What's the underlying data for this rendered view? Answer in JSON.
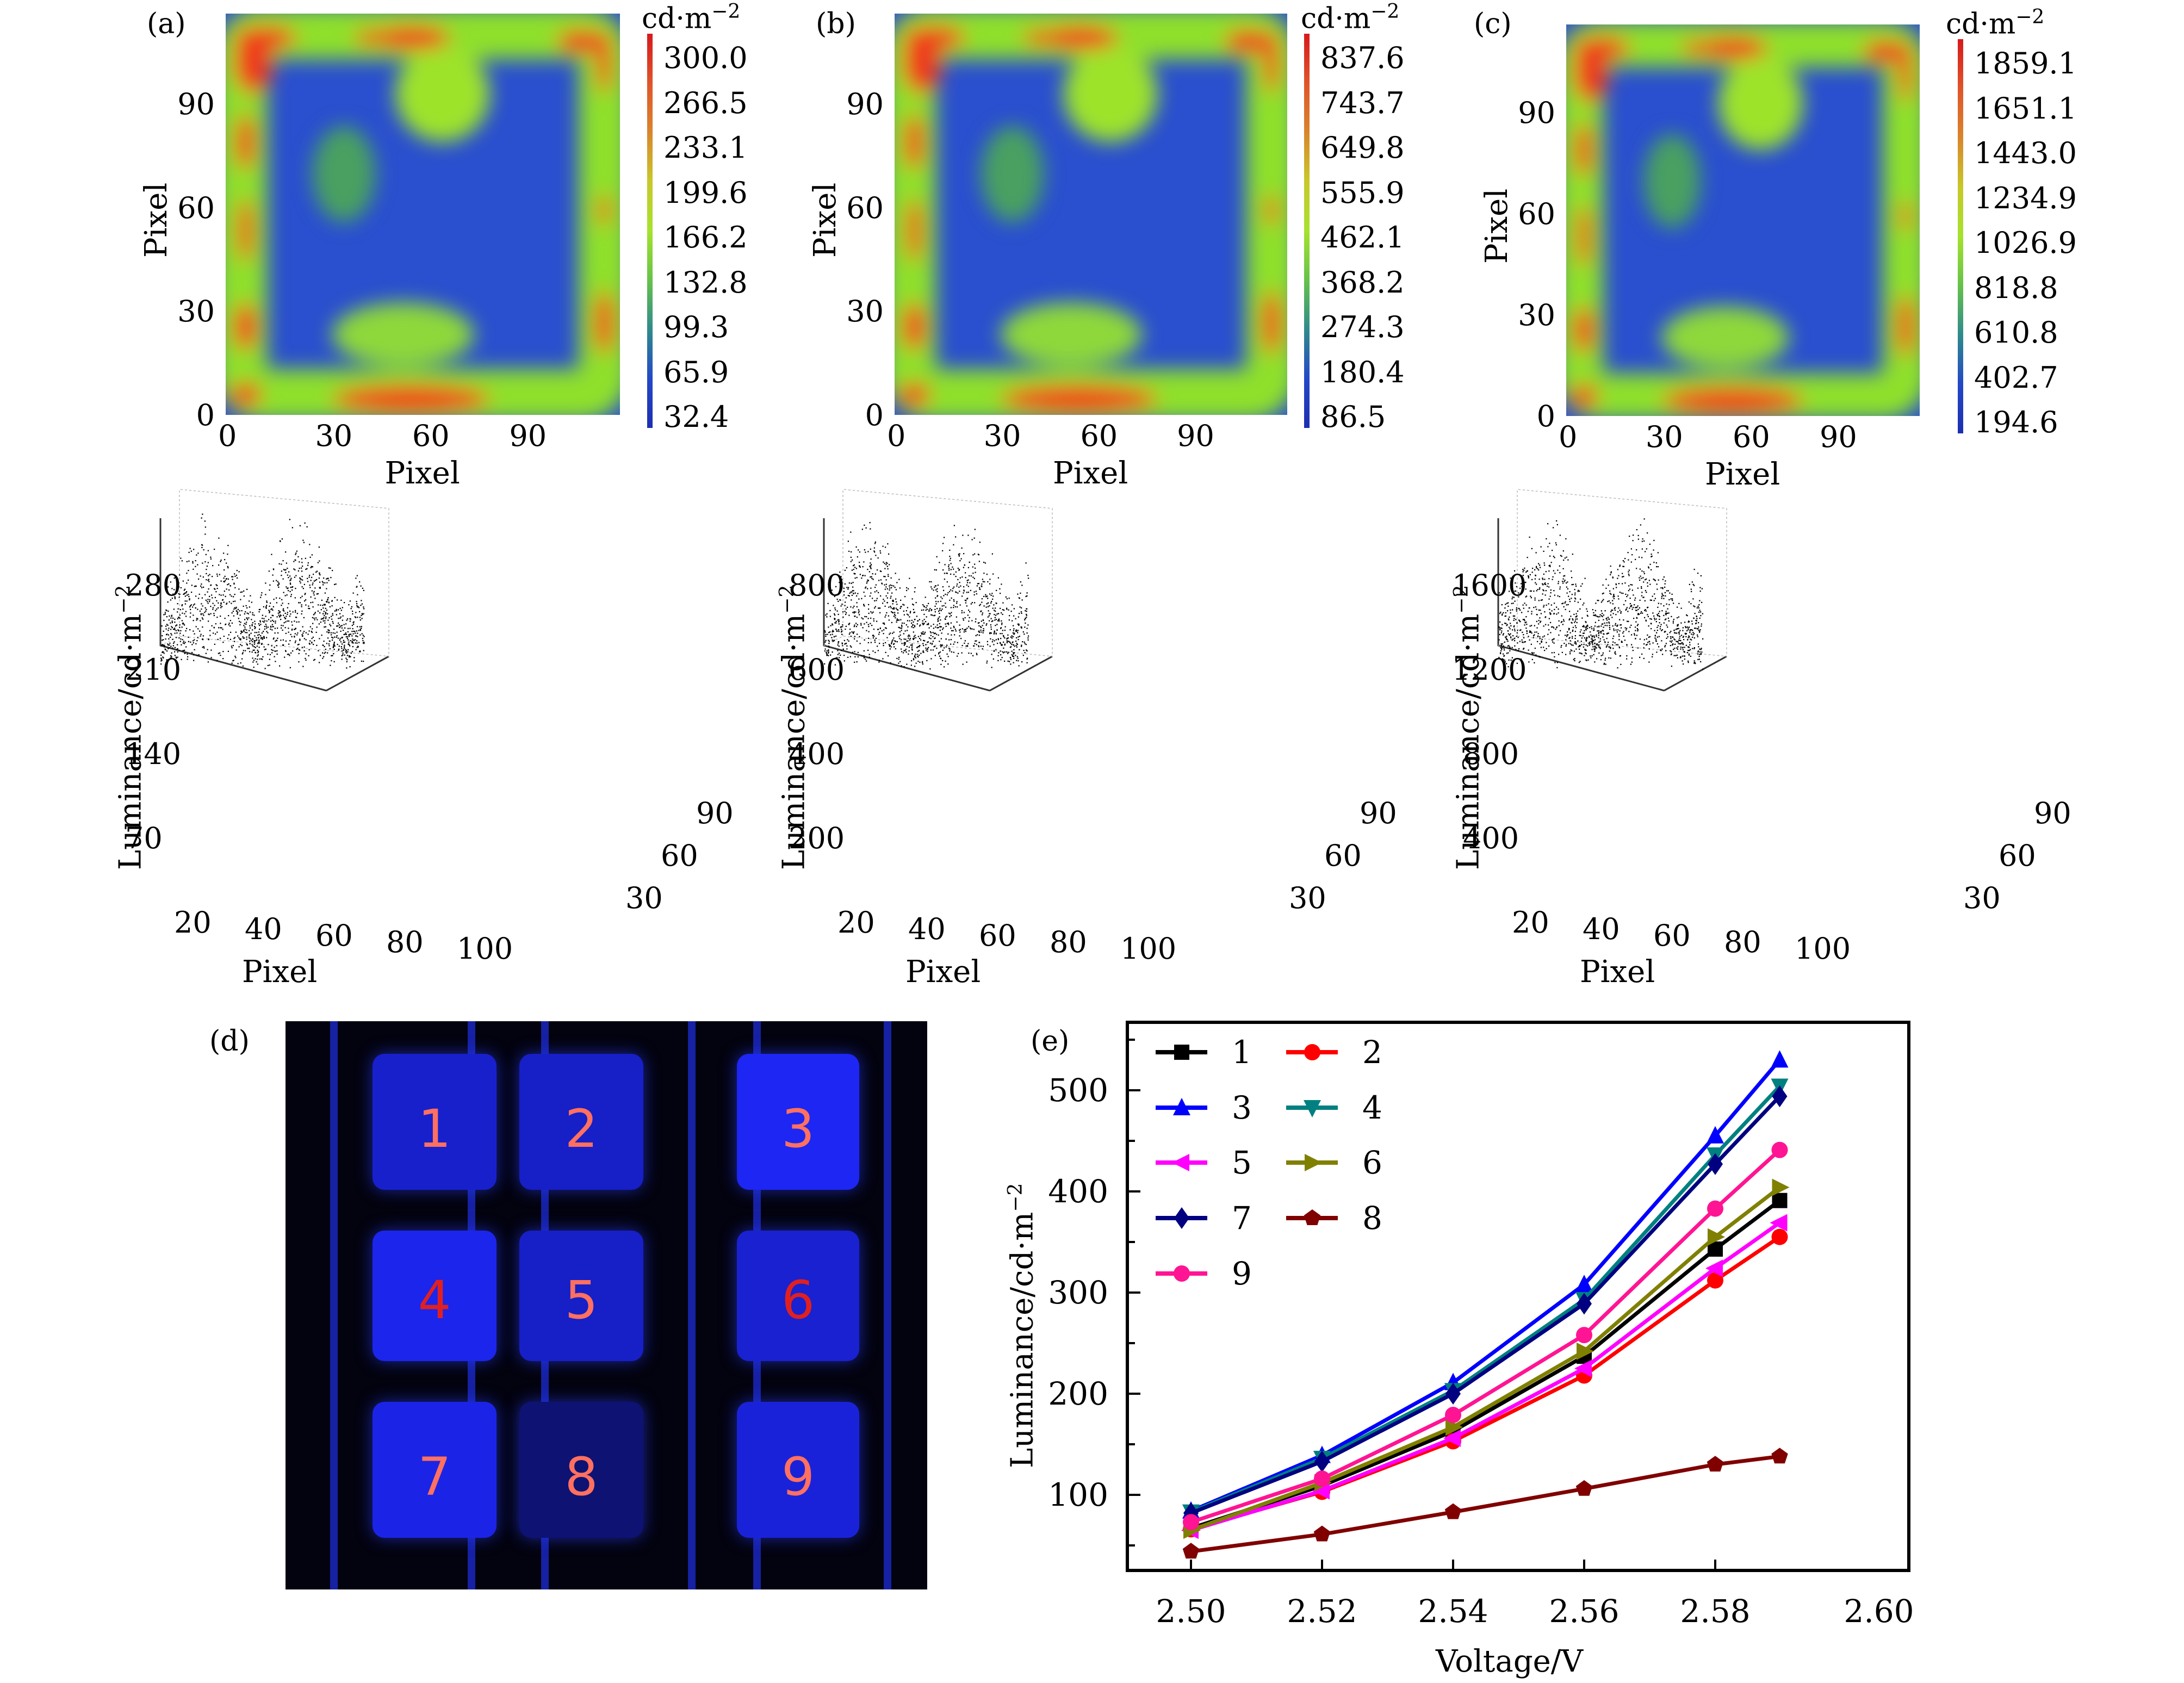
{
  "figure": {
    "panels": [
      "(a)",
      "(b)",
      "(c)",
      "(d)",
      "(e)"
    ]
  },
  "heatmaps": [
    {
      "label": "(a)",
      "xlabel": "Pixel",
      "ylabel": "Pixel",
      "xticks": [
        "0",
        "30",
        "60",
        "90"
      ],
      "yticks": [
        "0",
        "30",
        "60",
        "90"
      ],
      "colorbar_unit": "cd·m",
      "colorbar_exp": "−2",
      "colorbar_values": [
        "300.0",
        "266.5",
        "233.1",
        "199.6",
        "166.2",
        "132.8",
        "99.3",
        "65.9",
        "32.4"
      ]
    },
    {
      "label": "(b)",
      "xlabel": "Pixel",
      "ylabel": "Pixel",
      "xticks": [
        "0",
        "30",
        "60",
        "90"
      ],
      "yticks": [
        "0",
        "30",
        "60",
        "90"
      ],
      "colorbar_unit": "cd·m",
      "colorbar_exp": "−2",
      "colorbar_values": [
        "837.6",
        "743.7",
        "649.8",
        "555.9",
        "462.1",
        "368.2",
        "274.3",
        "180.4",
        "86.5"
      ]
    },
    {
      "label": "(c)",
      "xlabel": "Pixel",
      "ylabel": "Pixel",
      "xticks": [
        "0",
        "30",
        "60",
        "90"
      ],
      "yticks": [
        "0",
        "30",
        "60",
        "90"
      ],
      "colorbar_unit": "cd·m",
      "colorbar_exp": "−2",
      "colorbar_values": [
        "1859.1",
        "1651.1",
        "1443.0",
        "1234.9",
        "1026.9",
        "818.8",
        "610.8",
        "402.7",
        "194.6"
      ]
    }
  ],
  "scatter3d": [
    {
      "zlabel": "Luminance/cd·m",
      "zexp": "−2",
      "xlabel": "Pixel",
      "zticks": [
        "280",
        "210",
        "140",
        "70"
      ],
      "xticks": [
        "20",
        "40",
        "60",
        "80",
        "100"
      ],
      "yticks": [
        "30",
        "60",
        "90"
      ]
    },
    {
      "zlabel": "Luminance/cd·m",
      "zexp": "−2",
      "xlabel": "Pixel",
      "zticks": [
        "800",
        "600",
        "400",
        "200"
      ],
      "xticks": [
        "20",
        "40",
        "60",
        "80",
        "100"
      ],
      "yticks": [
        "30",
        "60",
        "90"
      ]
    },
    {
      "zlabel": "Luminance/cd·m",
      "zexp": "−2",
      "xlabel": "Pixel",
      "zticks": [
        "1600",
        "1200",
        "800",
        "400"
      ],
      "xticks": [
        "20",
        "40",
        "60",
        "80",
        "100"
      ],
      "yticks": [
        "30",
        "60",
        "90"
      ]
    }
  ],
  "photo": {
    "label": "(d)",
    "pixels": [
      "1",
      "2",
      "3",
      "4",
      "5",
      "6",
      "7",
      "8",
      "9"
    ],
    "brightness": [
      0.8,
      0.78,
      0.95,
      0.92,
      0.78,
      0.82,
      0.9,
      0.45,
      0.85
    ]
  },
  "chart_data": {
    "type": "line",
    "label": "(e)",
    "title": "",
    "xlabel": "Voltage/V",
    "ylabel": "Luminance/cd·m",
    "ylabel_exp": "−2",
    "xlim": [
      2.49,
      2.6
    ],
    "ylim": [
      25,
      560
    ],
    "xticks": [
      "2.50",
      "2.52",
      "2.54",
      "2.56",
      "2.58",
      "2.60"
    ],
    "yticks": [
      "100",
      "200",
      "300",
      "400",
      "500"
    ],
    "grid": false,
    "legend_position": "top-left",
    "x": [
      2.5,
      2.52,
      2.54,
      2.56,
      2.58,
      2.59
    ],
    "series": [
      {
        "name": "1",
        "color": "#000000",
        "marker": "square",
        "values": [
          67,
          109,
          163,
          237,
          343,
          391
        ]
      },
      {
        "name": "2",
        "color": "#ff0000",
        "marker": "circle",
        "values": [
          66,
          103,
          153,
          218,
          312,
          355
        ]
      },
      {
        "name": "3",
        "color": "#0000ff",
        "marker": "triangle-up",
        "values": [
          84,
          139,
          211,
          308,
          455,
          530
        ]
      },
      {
        "name": "4",
        "color": "#008080",
        "marker": "triangle-down",
        "values": [
          83,
          136,
          203,
          293,
          436,
          504
        ]
      },
      {
        "name": "5",
        "color": "#ff00ff",
        "marker": "triangle-left",
        "values": [
          65,
          104,
          156,
          225,
          324,
          369
        ]
      },
      {
        "name": "6",
        "color": "#808000",
        "marker": "triangle-right",
        "values": [
          65,
          112,
          167,
          242,
          355,
          404
        ]
      },
      {
        "name": "7",
        "color": "#000080",
        "marker": "diamond",
        "values": [
          82,
          133,
          200,
          289,
          427,
          494
        ]
      },
      {
        "name": "8",
        "color": "#800000",
        "marker": "pentagon",
        "values": [
          44,
          61,
          83,
          106,
          130,
          138
        ]
      },
      {
        "name": "9",
        "color": "#ff1493",
        "marker": "circle",
        "values": [
          73,
          116,
          179,
          258,
          383,
          441
        ]
      }
    ]
  }
}
